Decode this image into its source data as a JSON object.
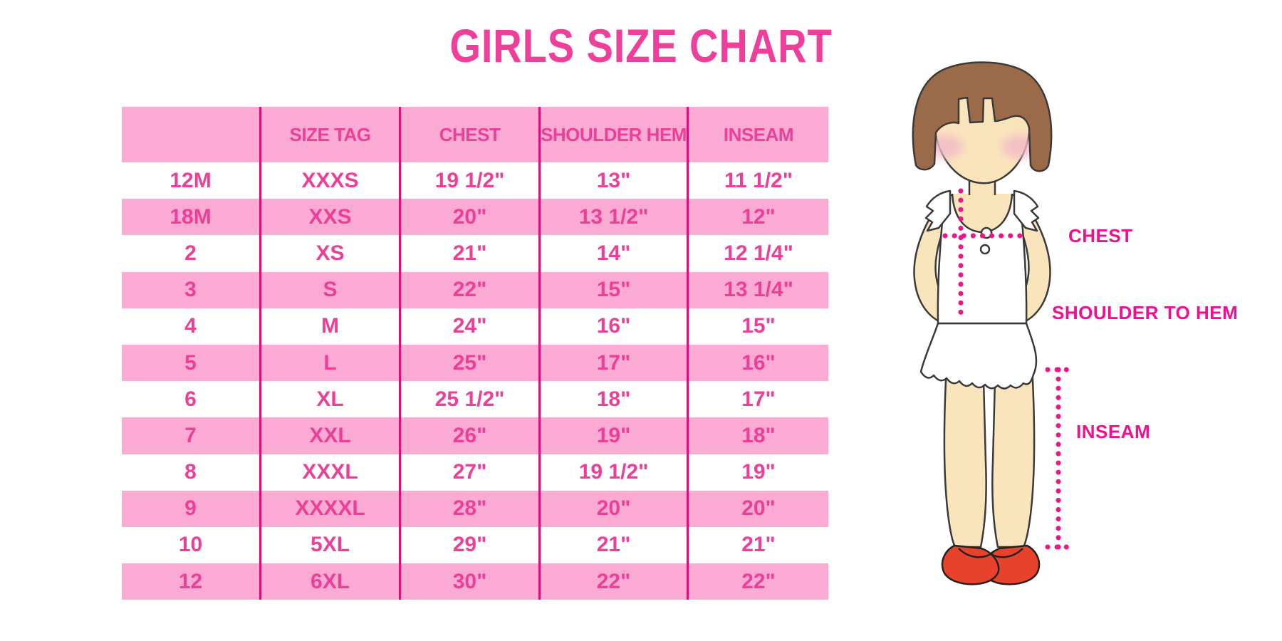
{
  "page": {
    "title": "GIRLS SIZE CHART"
  },
  "chart_data": {
    "type": "table",
    "title": "GIRLS SIZE CHART",
    "columns": [
      "",
      "SIZE TAG",
      "CHEST",
      "SHOULDER HEM",
      "INSEAM"
    ],
    "rows": [
      [
        "12M",
        "XXXS",
        "19 1/2\"",
        "13\"",
        "11 1/2\""
      ],
      [
        "18M",
        "XXS",
        "20\"",
        "13 1/2\"",
        "12\""
      ],
      [
        "2",
        "XS",
        "21\"",
        "14\"",
        "12 1/4\""
      ],
      [
        "3",
        "S",
        "22\"",
        "15\"",
        "13 1/4\""
      ],
      [
        "4",
        "M",
        "24\"",
        "16\"",
        "15\""
      ],
      [
        "5",
        "L",
        "25\"",
        "17\"",
        "16\""
      ],
      [
        "6",
        "XL",
        "25 1/2\"",
        "18\"",
        "17\""
      ],
      [
        "7",
        "XXL",
        "26\"",
        "19\"",
        "18\""
      ],
      [
        "8",
        "XXXL",
        "27\"",
        "19 1/2\"",
        "19\""
      ],
      [
        "9",
        "XXXXL",
        "28\"",
        "20\"",
        "20\""
      ],
      [
        "10",
        "5XL",
        "29\"",
        "21\"",
        "21\""
      ],
      [
        "12",
        "6XL",
        "30\"",
        "22\"",
        "22\""
      ]
    ],
    "row_striping": "alternating white and pink, first data row white",
    "grid": "vertical magenta column dividers only, no horizontal lines",
    "legend_position": "none"
  },
  "figure": {
    "labels": {
      "chest": "CHEST",
      "shoulder_to_hem": "SHOULDER TO HEM",
      "inseam": "INSEAM"
    }
  },
  "colors": {
    "title_pink": "#ee3f9b",
    "row_pink": "#fbabd3",
    "cell_text_pink": "#ec3f97",
    "divider_magenta": "#e00d79",
    "label_magenta": "#f20d93",
    "dotted_line_magenta": "#ec1786",
    "hair_brown": "#9a6a49",
    "skin": "#fae4bc",
    "blush": "#f2b9c8",
    "shoe_red": "#e8422c",
    "background": "#ffffff"
  }
}
